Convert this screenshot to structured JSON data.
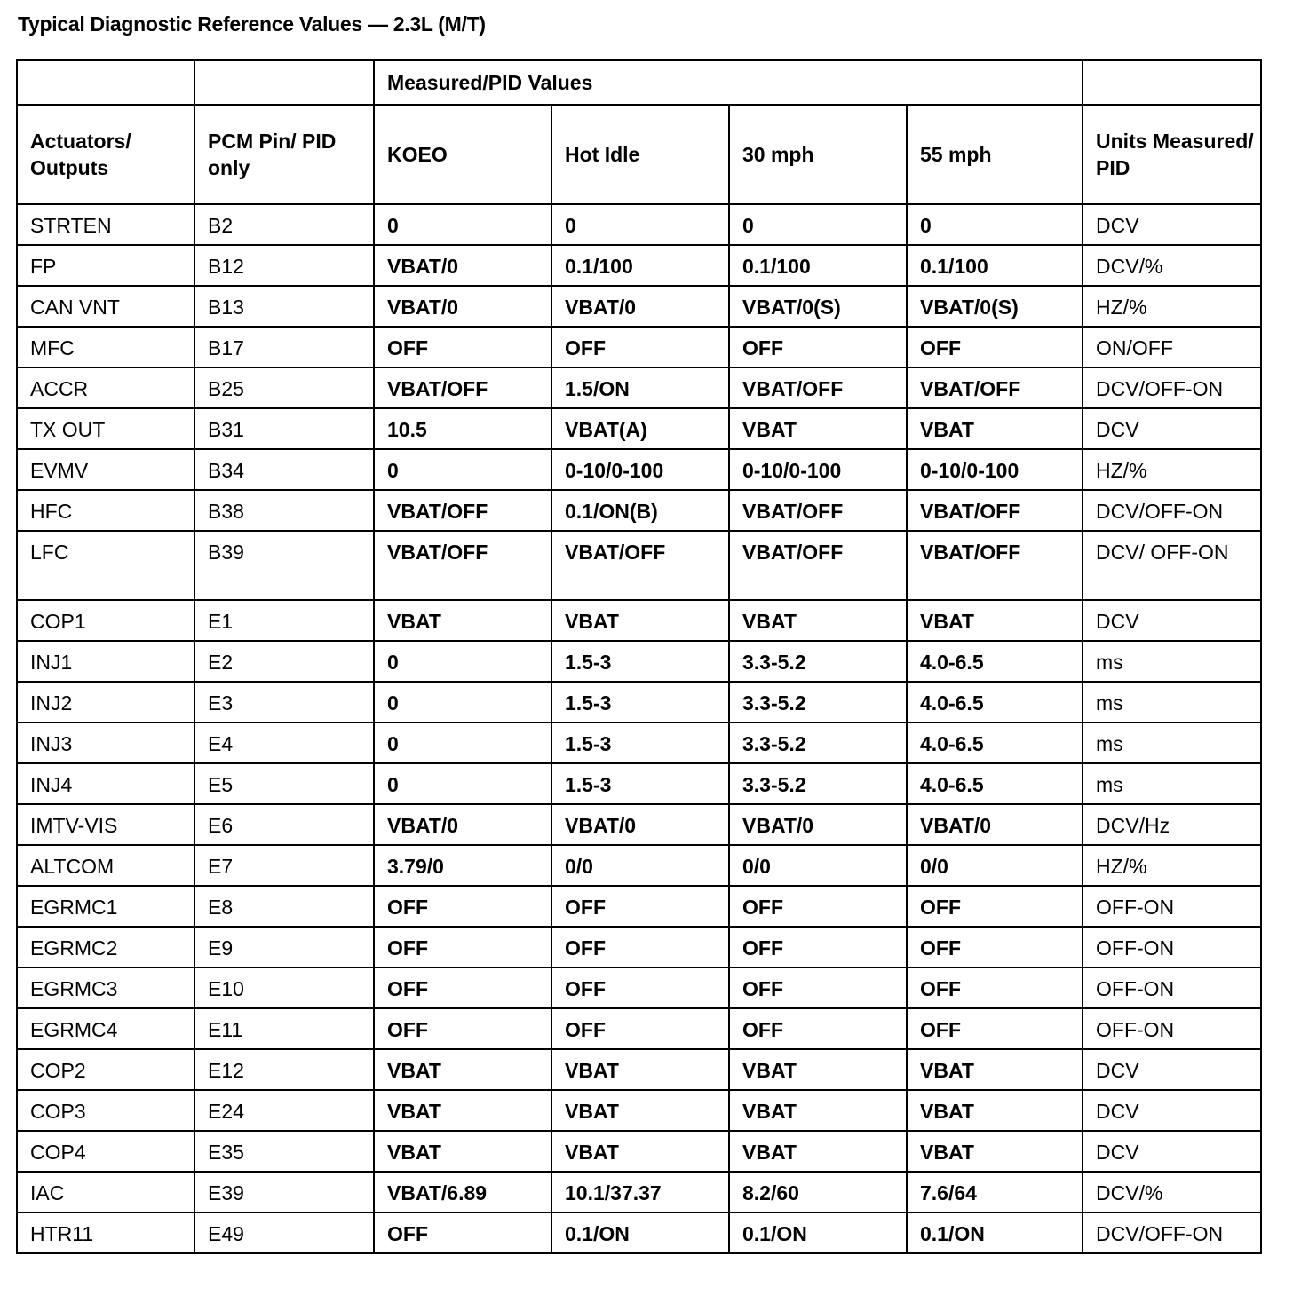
{
  "title": "Typical Diagnostic Reference Values — 2.3L (M/T)",
  "table": {
    "group_header": "Measured/PID Values",
    "headers": [
      "Actuators/ Outputs",
      "PCM Pin/ PID only",
      "KOEO",
      "Hot Idle",
      "30 mph",
      "55 mph",
      "Units Measured/ PID"
    ],
    "rows": [
      [
        "STRTEN",
        "B2",
        "0",
        "0",
        "0",
        "0",
        "DCV"
      ],
      [
        "FP",
        "B12",
        "VBAT/0",
        "0.1/100",
        "0.1/100",
        "0.1/100",
        "DCV/%"
      ],
      [
        "CAN VNT",
        "B13",
        "VBAT/0",
        "VBAT/0",
        "VBAT/0(S)",
        "VBAT/0(S)",
        "HZ/%"
      ],
      [
        "MFC",
        "B17",
        "OFF",
        "OFF",
        "OFF",
        "OFF",
        "ON/OFF"
      ],
      [
        "ACCR",
        "B25",
        "VBAT/OFF",
        "1.5/ON",
        "VBAT/OFF",
        "VBAT/OFF",
        "DCV/OFF-ON"
      ],
      [
        "TX OUT",
        "B31",
        "10.5",
        "VBAT(A)",
        "VBAT",
        "VBAT",
        "DCV"
      ],
      [
        "EVMV",
        "B34",
        "0",
        "0-10/0-100",
        "0-10/0-100",
        "0-10/0-100",
        "HZ/%"
      ],
      [
        "HFC",
        "B38",
        "VBAT/OFF",
        "0.1/ON(B)",
        "VBAT/OFF",
        "VBAT/OFF",
        "DCV/OFF-ON"
      ],
      [
        "LFC",
        "B39",
        "VBAT/OFF",
        "VBAT/OFF",
        "VBAT/OFF",
        "VBAT/OFF",
        "DCV/ OFF-ON"
      ],
      [
        "COP1",
        "E1",
        "VBAT",
        "VBAT",
        "VBAT",
        "VBAT",
        "DCV"
      ],
      [
        "INJ1",
        "E2",
        "0",
        "1.5-3",
        "3.3-5.2",
        "4.0-6.5",
        "ms"
      ],
      [
        "INJ2",
        "E3",
        "0",
        "1.5-3",
        "3.3-5.2",
        "4.0-6.5",
        "ms"
      ],
      [
        "INJ3",
        "E4",
        "0",
        "1.5-3",
        "3.3-5.2",
        "4.0-6.5",
        "ms"
      ],
      [
        "INJ4",
        "E5",
        "0",
        "1.5-3",
        "3.3-5.2",
        "4.0-6.5",
        "ms"
      ],
      [
        "IMTV-VIS",
        "E6",
        "VBAT/0",
        "VBAT/0",
        "VBAT/0",
        "VBAT/0",
        "DCV/Hz"
      ],
      [
        "ALTCOM",
        "E7",
        "3.79/0",
        "0/0",
        "0/0",
        "0/0",
        "HZ/%"
      ],
      [
        "EGRMC1",
        "E8",
        "OFF",
        "OFF",
        "OFF",
        "OFF",
        "OFF-ON"
      ],
      [
        "EGRMC2",
        "E9",
        "OFF",
        "OFF",
        "OFF",
        "OFF",
        "OFF-ON"
      ],
      [
        "EGRMC3",
        "E10",
        "OFF",
        "OFF",
        "OFF",
        "OFF",
        "OFF-ON"
      ],
      [
        "EGRMC4",
        "E11",
        "OFF",
        "OFF",
        "OFF",
        "OFF",
        "OFF-ON"
      ],
      [
        "COP2",
        "E12",
        "VBAT",
        "VBAT",
        "VBAT",
        "VBAT",
        "DCV"
      ],
      [
        "COP3",
        "E24",
        "VBAT",
        "VBAT",
        "VBAT",
        "VBAT",
        "DCV"
      ],
      [
        "COP4",
        "E35",
        "VBAT",
        "VBAT",
        "VBAT",
        "VBAT",
        "DCV"
      ],
      [
        "IAC",
        "E39",
        "VBAT/6.89",
        "10.1/37.37",
        "8.2/60",
        "7.6/64",
        "DCV/%"
      ],
      [
        "HTR11",
        "E49",
        "OFF",
        "0.1/ON",
        "0.1/ON",
        "0.1/ON",
        "DCV/OFF-ON"
      ]
    ]
  }
}
